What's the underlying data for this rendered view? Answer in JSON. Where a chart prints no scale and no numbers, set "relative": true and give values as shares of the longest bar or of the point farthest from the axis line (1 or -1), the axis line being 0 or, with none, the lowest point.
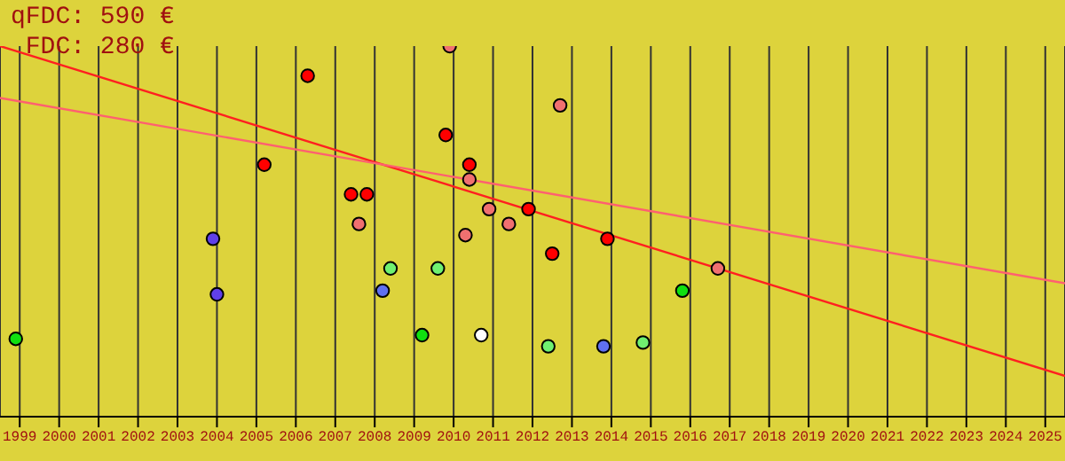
{
  "chart_data": {
    "type": "scatter",
    "relative": true,
    "grid": "x",
    "marker": "circle",
    "xlim": [
      1998.5,
      2025.5
    ],
    "xticks": [
      1999,
      2000,
      2001,
      2002,
      2003,
      2004,
      2005,
      2006,
      2007,
      2008,
      2009,
      2010,
      2011,
      2012,
      2013,
      2014,
      2015,
      2016,
      2017,
      2018,
      2019,
      2020,
      2021,
      2022,
      2023,
      2024,
      2025
    ],
    "annotations": [
      "qFDC: 590 €",
      "FDC: 280 €"
    ],
    "series": [
      {
        "type": "line",
        "color": "#ff2020",
        "line_style": "solid",
        "marker": "none",
        "x": [
          1998.5,
          2025.5
        ],
        "values": [
          1,
          0.11
        ]
      },
      {
        "type": "line",
        "color": "#ff6070",
        "line_style": "solid",
        "marker": "none",
        "x": [
          1998.5,
          2025.5
        ],
        "values": [
          0.86,
          0.36
        ]
      },
      {
        "type": "scatter",
        "color": "#ff0000",
        "x": [
          2006.3,
          2005.2,
          2007.4,
          2007.8,
          2009.8,
          2010.4,
          2011.9,
          2012.5,
          2013.9
        ],
        "values": [
          0.92,
          0.68,
          0.6,
          0.6,
          0.76,
          0.68,
          0.56,
          0.44,
          0.48
        ]
      },
      {
        "type": "scatter",
        "color": "#f07070",
        "x": [
          2009.9,
          2012.7,
          2010.4,
          2007.6,
          2010.9,
          2010.3,
          2011.4,
          2016.7
        ],
        "values": [
          1,
          0.84,
          0.64,
          0.52,
          0.56,
          0.49,
          0.52,
          0.4
        ]
      },
      {
        "type": "scatter",
        "color": "#6040e8",
        "x": [
          2003.9,
          2004.0
        ],
        "values": [
          0.48,
          0.33
        ]
      },
      {
        "type": "scatter",
        "color": "#6070f0",
        "x": [
          2008.2,
          2013.8
        ],
        "values": [
          0.34,
          0.19
        ]
      },
      {
        "type": "scatter",
        "color": "#70f070",
        "x": [
          2008.4,
          2009.6,
          2012.4,
          2014.8
        ],
        "values": [
          0.4,
          0.4,
          0.19,
          0.2
        ]
      },
      {
        "type": "scatter",
        "color": "#10e010",
        "x": [
          1998.9,
          2009.2,
          2015.8
        ],
        "values": [
          0.21,
          0.22,
          0.34
        ]
      },
      {
        "type": "scatter",
        "color": "#ffffff",
        "x": [
          2010.7
        ],
        "values": [
          0.22
        ]
      }
    ]
  }
}
